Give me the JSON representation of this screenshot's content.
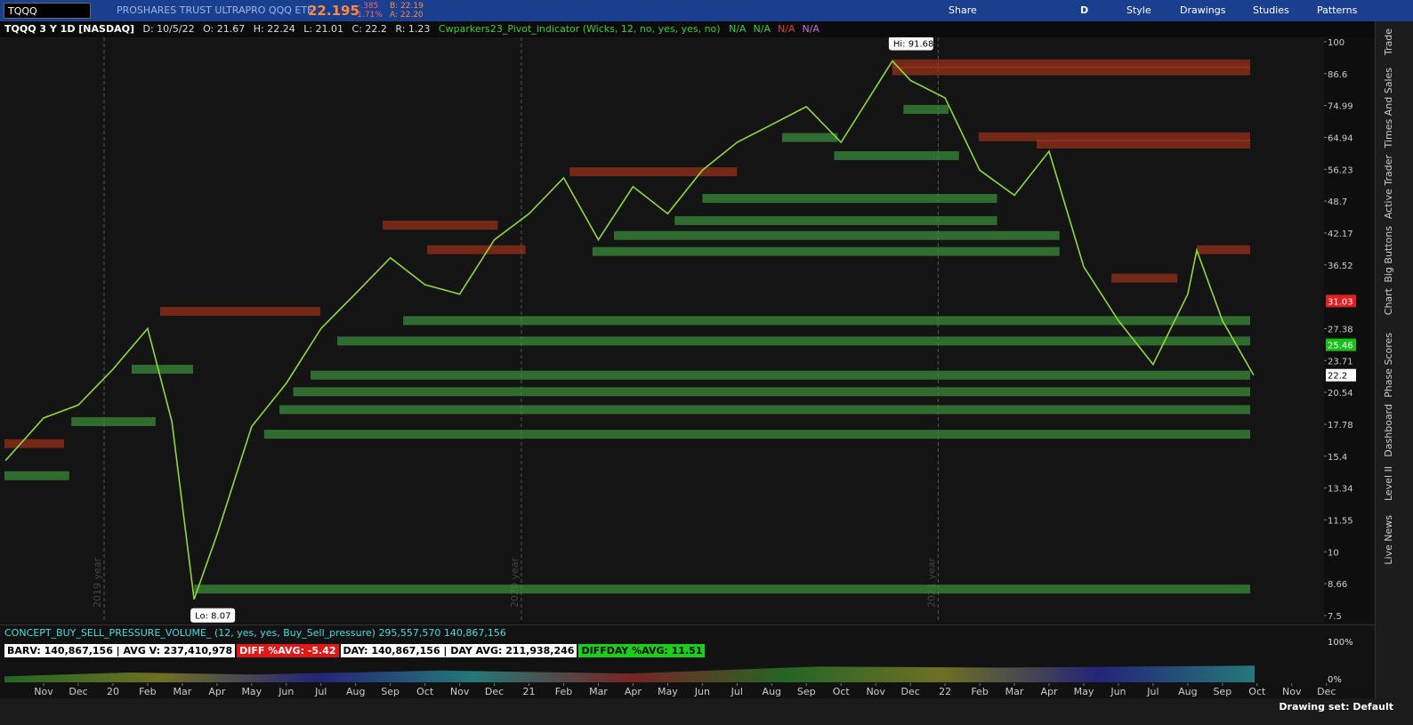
{
  "toolbar": {
    "symbol": "TQQQ",
    "description": "PROSHARES TRUST ULTRAPRO QQQ ETF",
    "last": "22.195",
    "change": "-.385",
    "change_pct": "-1.71%",
    "bid": "B: 22.19",
    "ask": "A: 22.20",
    "buttons": [
      "Share",
      "D",
      "Style",
      "Drawings",
      "Studies",
      "Patterns"
    ]
  },
  "header": {
    "title": "TQQQ 3 Y 1D [NASDAQ]",
    "date": "D: 10/5/22",
    "open": "O: 21.67",
    "high": "H: 22.24",
    "low": "L: 21.01",
    "close": "C: 22.2",
    "range": "R: 1.23",
    "study": "Cwparkers23_Pivot_indicator (Wicks, 12, no, yes, yes, no)",
    "study_values": [
      {
        "label": "N/A",
        "color": "#35d035"
      },
      {
        "label": "N/A",
        "color": "#35d035"
      },
      {
        "label": "N/A",
        "color": "#e23b3b"
      },
      {
        "label": "N/A",
        "color": "#d070e0"
      }
    ]
  },
  "chart_data": {
    "type": "line",
    "color": "#8fd83a",
    "log_scale": true,
    "xlim": [
      -1.13,
      36.93
    ],
    "ylim": [
      7.32,
      102
    ],
    "xticks": [
      {
        "value": 0,
        "label": "Nov"
      },
      {
        "value": 1,
        "label": "Dec"
      },
      {
        "value": 2,
        "label": "20"
      },
      {
        "value": 3,
        "label": "Feb"
      },
      {
        "value": 4,
        "label": "Mar"
      },
      {
        "value": 5,
        "label": "Apr"
      },
      {
        "value": 6,
        "label": "May"
      },
      {
        "value": 7,
        "label": "Jun"
      },
      {
        "value": 8,
        "label": "Jul"
      },
      {
        "value": 9,
        "label": "Aug"
      },
      {
        "value": 10,
        "label": "Sep"
      },
      {
        "value": 11,
        "label": "Oct"
      },
      {
        "value": 12,
        "label": "Nov"
      },
      {
        "value": 13,
        "label": "Dec"
      },
      {
        "value": 14,
        "label": "21"
      },
      {
        "value": 15,
        "label": "Feb"
      },
      {
        "value": 16,
        "label": "Mar"
      },
      {
        "value": 17,
        "label": "Apr"
      },
      {
        "value": 18,
        "label": "May"
      },
      {
        "value": 19,
        "label": "Jun"
      },
      {
        "value": 20,
        "label": "Jul"
      },
      {
        "value": 21,
        "label": "Aug"
      },
      {
        "value": 22,
        "label": "Sep"
      },
      {
        "value": 23,
        "label": "Oct"
      },
      {
        "value": 24,
        "label": "Nov"
      },
      {
        "value": 25,
        "label": "Dec"
      },
      {
        "value": 26,
        "label": "22"
      },
      {
        "value": 27,
        "label": "Feb"
      },
      {
        "value": 28,
        "label": "Mar"
      },
      {
        "value": 29,
        "label": "Apr"
      },
      {
        "value": 30,
        "label": "May"
      },
      {
        "value": 31,
        "label": "Jun"
      },
      {
        "value": 32,
        "label": "Jul"
      },
      {
        "value": 33,
        "label": "Aug"
      },
      {
        "value": 34,
        "label": "Sep"
      },
      {
        "value": 35,
        "label": "Oct"
      },
      {
        "value": 36,
        "label": "Nov"
      },
      {
        "value": 37,
        "label": "Dec"
      }
    ],
    "yticks": [
      100,
      86.6,
      74.99,
      64.94,
      56.23,
      48.7,
      42.17,
      36.52,
      27.38,
      23.71,
      20.54,
      17.78,
      15.4,
      13.34,
      11.55,
      10,
      8.66,
      7.5
    ],
    "x": [
      -1.1,
      0,
      1,
      2,
      3,
      3.7,
      4.34,
      5,
      6,
      7,
      8,
      9,
      10,
      11,
      12,
      13,
      14,
      15,
      16,
      17,
      18,
      19,
      20,
      21,
      22,
      23,
      24.48,
      25,
      26,
      27,
      28,
      29,
      30,
      31,
      32,
      33,
      33.26,
      34,
      34.9
    ],
    "values": [
      15.1,
      18.3,
      19.4,
      22.8,
      27.4,
      18,
      8.07,
      10.8,
      17.6,
      21.4,
      27.4,
      32.1,
      37.7,
      33.4,
      32,
      40.9,
      46,
      54.1,
      40.9,
      52,
      46,
      56,
      63.5,
      68.8,
      74.6,
      63.5,
      91.68,
      84,
      77.6,
      56,
      50,
      61,
      36.2,
      28.4,
      23.3,
      32,
      39,
      28.4,
      22.2
    ],
    "annotations": [
      {
        "x": 24.48,
        "value": 91.68,
        "label": "Hi: 91.68"
      },
      {
        "x": 4.34,
        "value": 8.07,
        "label": "Lo: 8.07"
      }
    ],
    "price_markers": [
      {
        "value": 31.03,
        "color": "#e02020"
      },
      {
        "value": 25.46,
        "color": "#16c016"
      },
      {
        "value": 22.2,
        "color": "#ffffff"
      }
    ],
    "year_markers": [
      {
        "x": 1.745,
        "label": "2019 year"
      },
      {
        "x": 13.78,
        "label": "2020 year"
      },
      {
        "x": 25.8,
        "label": "2021 year"
      }
    ],
    "support_color": "#3f9b3f",
    "resistance_color": "#a8321a",
    "support_zones": [
      {
        "start": 4.34,
        "end": 34.8,
        "value": 8.45
      },
      {
        "start": 6.36,
        "end": 34.8,
        "value": 17
      },
      {
        "start": 6.8,
        "end": 34.8,
        "value": 19
      },
      {
        "start": 7.2,
        "end": 34.8,
        "value": 20.6
      },
      {
        "start": 7.7,
        "end": 34.8,
        "value": 22.2
      },
      {
        "start": 8.47,
        "end": 34.8,
        "value": 25.9
      },
      {
        "start": 10.37,
        "end": 34.8,
        "value": 28.4
      },
      {
        "start": 15.83,
        "end": 29.3,
        "value": 38.8
      },
      {
        "start": 16.45,
        "end": 29.3,
        "value": 41.7
      },
      {
        "start": 18.2,
        "end": 27.5,
        "value": 44.6
      },
      {
        "start": 19,
        "end": 27.5,
        "value": 49.3
      },
      {
        "start": 22.8,
        "end": 26.4,
        "value": 59.8
      },
      {
        "start": 21.3,
        "end": 22.9,
        "value": 64.9
      },
      {
        "start": 24.8,
        "end": 26.1,
        "value": 73.7
      },
      {
        "start": -1.13,
        "end": 0.74,
        "value": 14.1
      },
      {
        "start": 0.8,
        "end": 3.23,
        "value": 18
      },
      {
        "start": 2.54,
        "end": 4.31,
        "value": 22.8
      }
    ],
    "resistance_zones": [
      {
        "start": 24.48,
        "end": 34.8,
        "value": 90.5
      },
      {
        "start": 24.48,
        "end": 34.8,
        "value": 87.7
      },
      {
        "start": 26.97,
        "end": 34.8,
        "value": 65.1
      },
      {
        "start": 28.64,
        "end": 34.8,
        "value": 63
      },
      {
        "start": 33.26,
        "end": 34.8,
        "value": 39.1
      },
      {
        "start": 30.8,
        "end": 32.7,
        "value": 34.4
      },
      {
        "start": 15.17,
        "end": 20,
        "value": 55.6
      },
      {
        "start": 9.78,
        "end": 13.1,
        "value": 43.7
      },
      {
        "start": 11.06,
        "end": 13.9,
        "value": 39.1
      },
      {
        "start": 3.36,
        "end": 7.98,
        "value": 29.6
      },
      {
        "start": -1.13,
        "end": 0.59,
        "value": 16.3
      }
    ]
  },
  "lower_study": {
    "title": "CONCEPT_BUY_SELL_PRESSURE_VOLUME_ (12, yes, yes, Buy_Sell_pressure)",
    "value_1": "295,557,570",
    "value_2": "140,867,156",
    "labels": [
      {
        "text": "BARV: 140,867,156 | AVG V: 237,410,978",
        "bg": "#ffffff",
        "fg": "#000000"
      },
      {
        "text": "DIFF %AVG: -5.42",
        "bg": "#e01818",
        "fg": "#ffffff"
      },
      {
        "text": "DAY: 140,867,156 | DAY AVG: 211,938,246",
        "bg": "#ffffff",
        "fg": "#000000"
      },
      {
        "text": "DIFFDAY %AVG: 11.51",
        "bg": "#19d019",
        "fg": "#000000"
      }
    ],
    "axis": [
      "100%",
      "0%"
    ]
  },
  "side_tabs": [
    "Trade",
    "Times And Sales",
    "Active Trader",
    "Big Buttons",
    "Chart",
    "Phase Scores",
    "Dashboard",
    "Level II",
    "Live News"
  ],
  "footer": {
    "drawing_set": "Drawing set: Default"
  }
}
